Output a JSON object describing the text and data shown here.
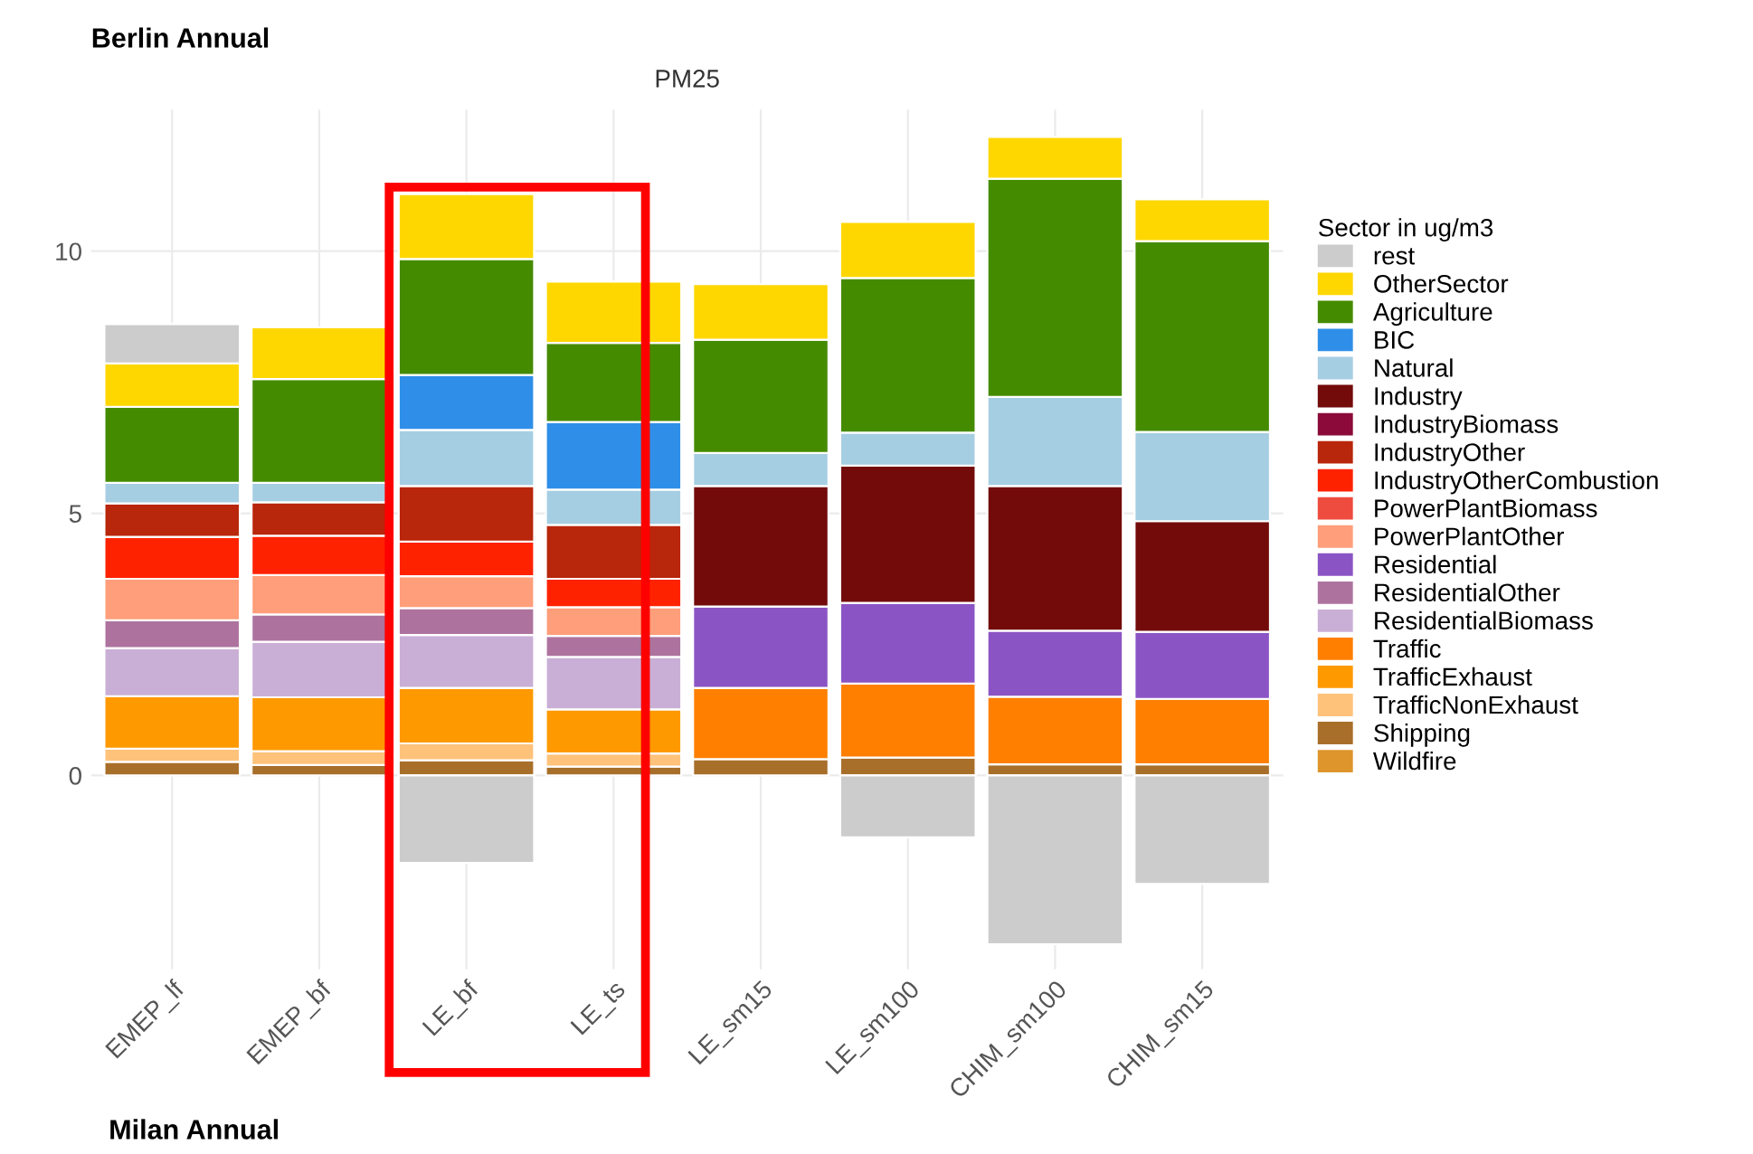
{
  "chart_data": {
    "type": "bar",
    "stacked": true,
    "title": "Berlin Annual",
    "subtitle": "PM25",
    "legend_title": "Sector in ug/m3",
    "legend": "right",
    "grid": true,
    "categories": [
      "EMEP_lf",
      "EMEP_bf",
      "LE_bf",
      "LE_ts",
      "LE_sm15",
      "LE_sm100",
      "CHIM_sm100",
      "CHIM_sm15"
    ],
    "ylim": [
      -3.7,
      12.7
    ],
    "yticks": [
      0,
      5,
      10
    ],
    "series": [
      {
        "name": "Wildfire",
        "color": "#dd952c",
        "values": [
          null,
          null,
          null,
          null,
          null,
          null,
          null,
          null
        ]
      },
      {
        "name": "Shipping",
        "color": "#a86f2a",
        "values": [
          0.26,
          0.2,
          0.29,
          0.17,
          0.31,
          0.34,
          0.21,
          0.21
        ]
      },
      {
        "name": "TrafficNonExhaust",
        "color": "#ffc27a",
        "values": [
          0.25,
          0.26,
          0.32,
          0.25,
          null,
          null,
          null,
          null
        ]
      },
      {
        "name": "TrafficExhaust",
        "color": "#ff9900",
        "values": [
          1.0,
          1.03,
          1.06,
          0.84,
          null,
          null,
          null,
          null
        ]
      },
      {
        "name": "Traffic",
        "color": "#ff7f00",
        "values": [
          null,
          null,
          null,
          null,
          1.36,
          1.41,
          1.29,
          1.25
        ]
      },
      {
        "name": "ResidentialBiomass",
        "color": "#c9afd6",
        "values": [
          0.92,
          1.06,
          1.01,
          1.0,
          null,
          null,
          null,
          null
        ]
      },
      {
        "name": "ResidentialOther",
        "color": "#ad739e",
        "values": [
          0.53,
          0.52,
          0.51,
          0.4,
          null,
          null,
          null,
          null
        ]
      },
      {
        "name": "Residential",
        "color": "#8b54c4",
        "values": [
          null,
          null,
          null,
          null,
          1.55,
          1.54,
          1.26,
          1.28
        ]
      },
      {
        "name": "PowerPlantOther",
        "color": "#ff9e7a",
        "values": [
          0.79,
          0.75,
          0.61,
          0.55,
          null,
          null,
          null,
          null
        ]
      },
      {
        "name": "PowerPlantBiomass",
        "color": "#ee4c3f",
        "values": [
          null,
          null,
          null,
          null,
          null,
          null,
          null,
          null
        ]
      },
      {
        "name": "IndustryOtherCombustion",
        "color": "#ff2200",
        "values": [
          0.8,
          0.75,
          0.66,
          0.54,
          null,
          null,
          null,
          null
        ]
      },
      {
        "name": "IndustryOther",
        "color": "#b8260b",
        "values": [
          0.64,
          0.64,
          1.06,
          1.03,
          null,
          null,
          null,
          null
        ]
      },
      {
        "name": "IndustryBiomass",
        "color": "#8b0a3a",
        "values": [
          null,
          null,
          null,
          null,
          null,
          null,
          null,
          null
        ]
      },
      {
        "name": "Industry",
        "color": "#730b0b",
        "values": [
          null,
          null,
          null,
          null,
          2.3,
          2.62,
          2.76,
          2.11
        ]
      },
      {
        "name": "Natural",
        "color": "#a6cee3",
        "values": [
          0.39,
          0.37,
          1.07,
          0.67,
          0.63,
          0.63,
          1.7,
          1.7
        ]
      },
      {
        "name": "BIC",
        "color": "#2f8fe8",
        "values": [
          null,
          null,
          1.05,
          1.29,
          null,
          null,
          null,
          null
        ]
      },
      {
        "name": "Agriculture",
        "color": "#458b00",
        "values": [
          1.45,
          1.98,
          2.21,
          1.51,
          2.16,
          2.95,
          4.16,
          3.64
        ]
      },
      {
        "name": "OtherSector",
        "color": "#ffd700",
        "values": [
          0.83,
          0.99,
          1.24,
          1.17,
          1.06,
          1.07,
          0.8,
          0.8
        ]
      },
      {
        "name": "rest",
        "color": "#cccccc",
        "values": [
          0.75,
          null,
          -1.67,
          null,
          null,
          -1.18,
          -3.22,
          -2.07
        ]
      }
    ],
    "annotations": [
      "Milan Annual"
    ]
  }
}
